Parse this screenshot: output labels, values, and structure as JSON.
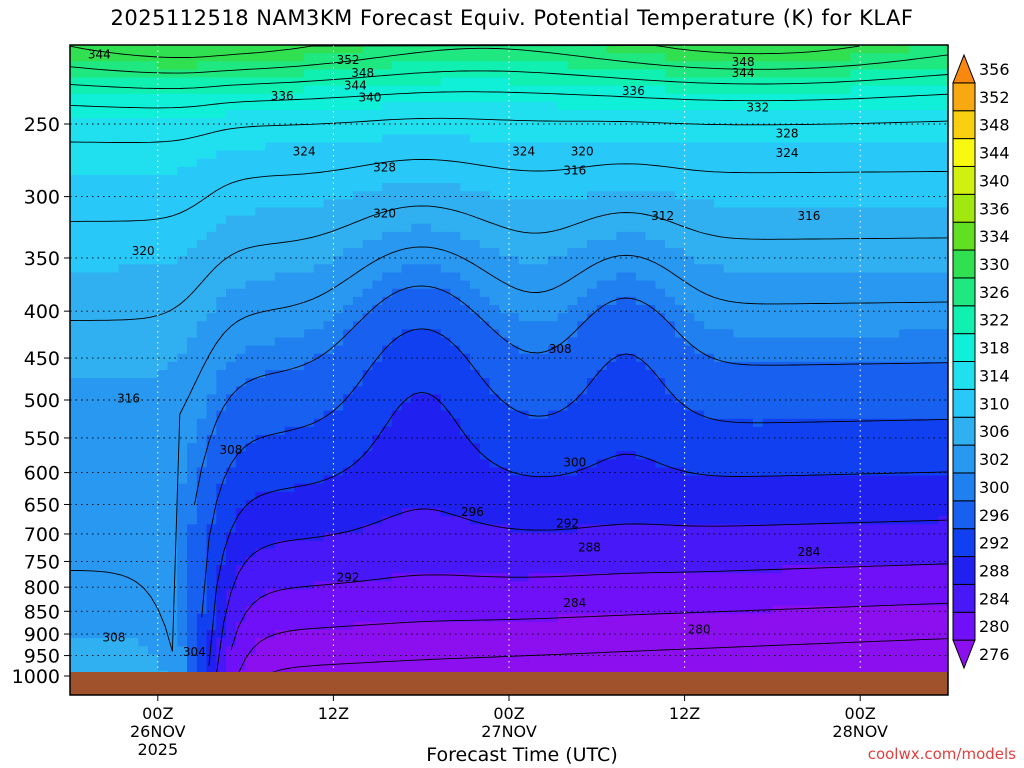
{
  "chart_data": {
    "type": "heatmap",
    "title": "2025112518 NAM3KM Forecast Equiv. Potential Temperature (K) for KLAF",
    "xlabel": "Forecast Time (UTC)",
    "ylabel": "",
    "y_scale": "log-pressure",
    "y_axis_direction": "decreasing-upward",
    "ylim": [
      1000,
      200
    ],
    "y_ticks": [
      250,
      300,
      350,
      400,
      450,
      500,
      550,
      600,
      650,
      700,
      750,
      800,
      850,
      900,
      950,
      1000
    ],
    "x_ticks": [
      {
        "hour": 6,
        "lines": [
          "00Z",
          "26NOV",
          "2025"
        ]
      },
      {
        "hour": 18,
        "lines": [
          "12Z"
        ]
      },
      {
        "hour": 30,
        "lines": [
          "00Z",
          "27NOV"
        ]
      },
      {
        "hour": 42,
        "lines": [
          "12Z"
        ]
      },
      {
        "hour": 54,
        "lines": [
          "00Z",
          "28NOV"
        ]
      }
    ],
    "xlim": [
      0,
      60
    ],
    "grid": true,
    "colorbar_levels": [
      276,
      280,
      284,
      288,
      292,
      296,
      300,
      302,
      306,
      310,
      314,
      318,
      322,
      326,
      330,
      334,
      336,
      340,
      344,
      348,
      352,
      356
    ],
    "colorbar_colors": [
      "#8c0ff0",
      "#7010f8",
      "#4818f8",
      "#2020f0",
      "#1040f0",
      "#1860f0",
      "#2080f0",
      "#2898f0",
      "#30b0f0",
      "#28c8f8",
      "#20e0f0",
      "#10f0d8",
      "#10f0b0",
      "#20e880",
      "#30e050",
      "#60e020",
      "#a0e810",
      "#d0f010",
      "#f8f810",
      "#f8d010",
      "#f8a810",
      "#f88810"
    ],
    "ground_color": "#a0522d",
    "contour_labels": [
      {
        "hour": 2.0,
        "p": 210,
        "text": "344"
      },
      {
        "hour": 19.0,
        "p": 213,
        "text": "352"
      },
      {
        "hour": 20.0,
        "p": 220,
        "text": "348"
      },
      {
        "hour": 19.5,
        "p": 227,
        "text": "344"
      },
      {
        "hour": 20.5,
        "p": 234,
        "text": "340"
      },
      {
        "hour": 14.5,
        "p": 233,
        "text": "336"
      },
      {
        "hour": 46.0,
        "p": 214,
        "text": "348"
      },
      {
        "hour": 46.0,
        "p": 220,
        "text": "344"
      },
      {
        "hour": 38.5,
        "p": 230,
        "text": "336"
      },
      {
        "hour": 47.0,
        "p": 240,
        "text": "332"
      },
      {
        "hour": 49.0,
        "p": 256,
        "text": "328"
      },
      {
        "hour": 49.0,
        "p": 269,
        "text": "324"
      },
      {
        "hour": 16.0,
        "p": 268,
        "text": "324"
      },
      {
        "hour": 21.5,
        "p": 279,
        "text": "328"
      },
      {
        "hour": 31.0,
        "p": 268,
        "text": "324"
      },
      {
        "hour": 35.0,
        "p": 268,
        "text": "320"
      },
      {
        "hour": 34.5,
        "p": 281,
        "text": "316"
      },
      {
        "hour": 21.5,
        "p": 313,
        "text": "320"
      },
      {
        "hour": 40.5,
        "p": 315,
        "text": "312"
      },
      {
        "hour": 50.5,
        "p": 315,
        "text": "316"
      },
      {
        "hour": 5.0,
        "p": 344,
        "text": "320"
      },
      {
        "hour": 33.5,
        "p": 440,
        "text": "308"
      },
      {
        "hour": 4.0,
        "p": 498,
        "text": "316"
      },
      {
        "hour": 11.0,
        "p": 567,
        "text": "308"
      },
      {
        "hour": 34.5,
        "p": 585,
        "text": "300"
      },
      {
        "hour": 27.5,
        "p": 662,
        "text": "296"
      },
      {
        "hour": 34.0,
        "p": 682,
        "text": "292"
      },
      {
        "hour": 35.5,
        "p": 724,
        "text": "288"
      },
      {
        "hour": 50.5,
        "p": 732,
        "text": "284"
      },
      {
        "hour": 19.0,
        "p": 781,
        "text": "292"
      },
      {
        "hour": 34.5,
        "p": 833,
        "text": "284"
      },
      {
        "hour": 43.0,
        "p": 890,
        "text": "280"
      },
      {
        "hour": 3.0,
        "p": 908,
        "text": "308"
      },
      {
        "hour": 8.5,
        "p": 942,
        "text": "304"
      }
    ]
  },
  "credit": "coolwx.com/models"
}
